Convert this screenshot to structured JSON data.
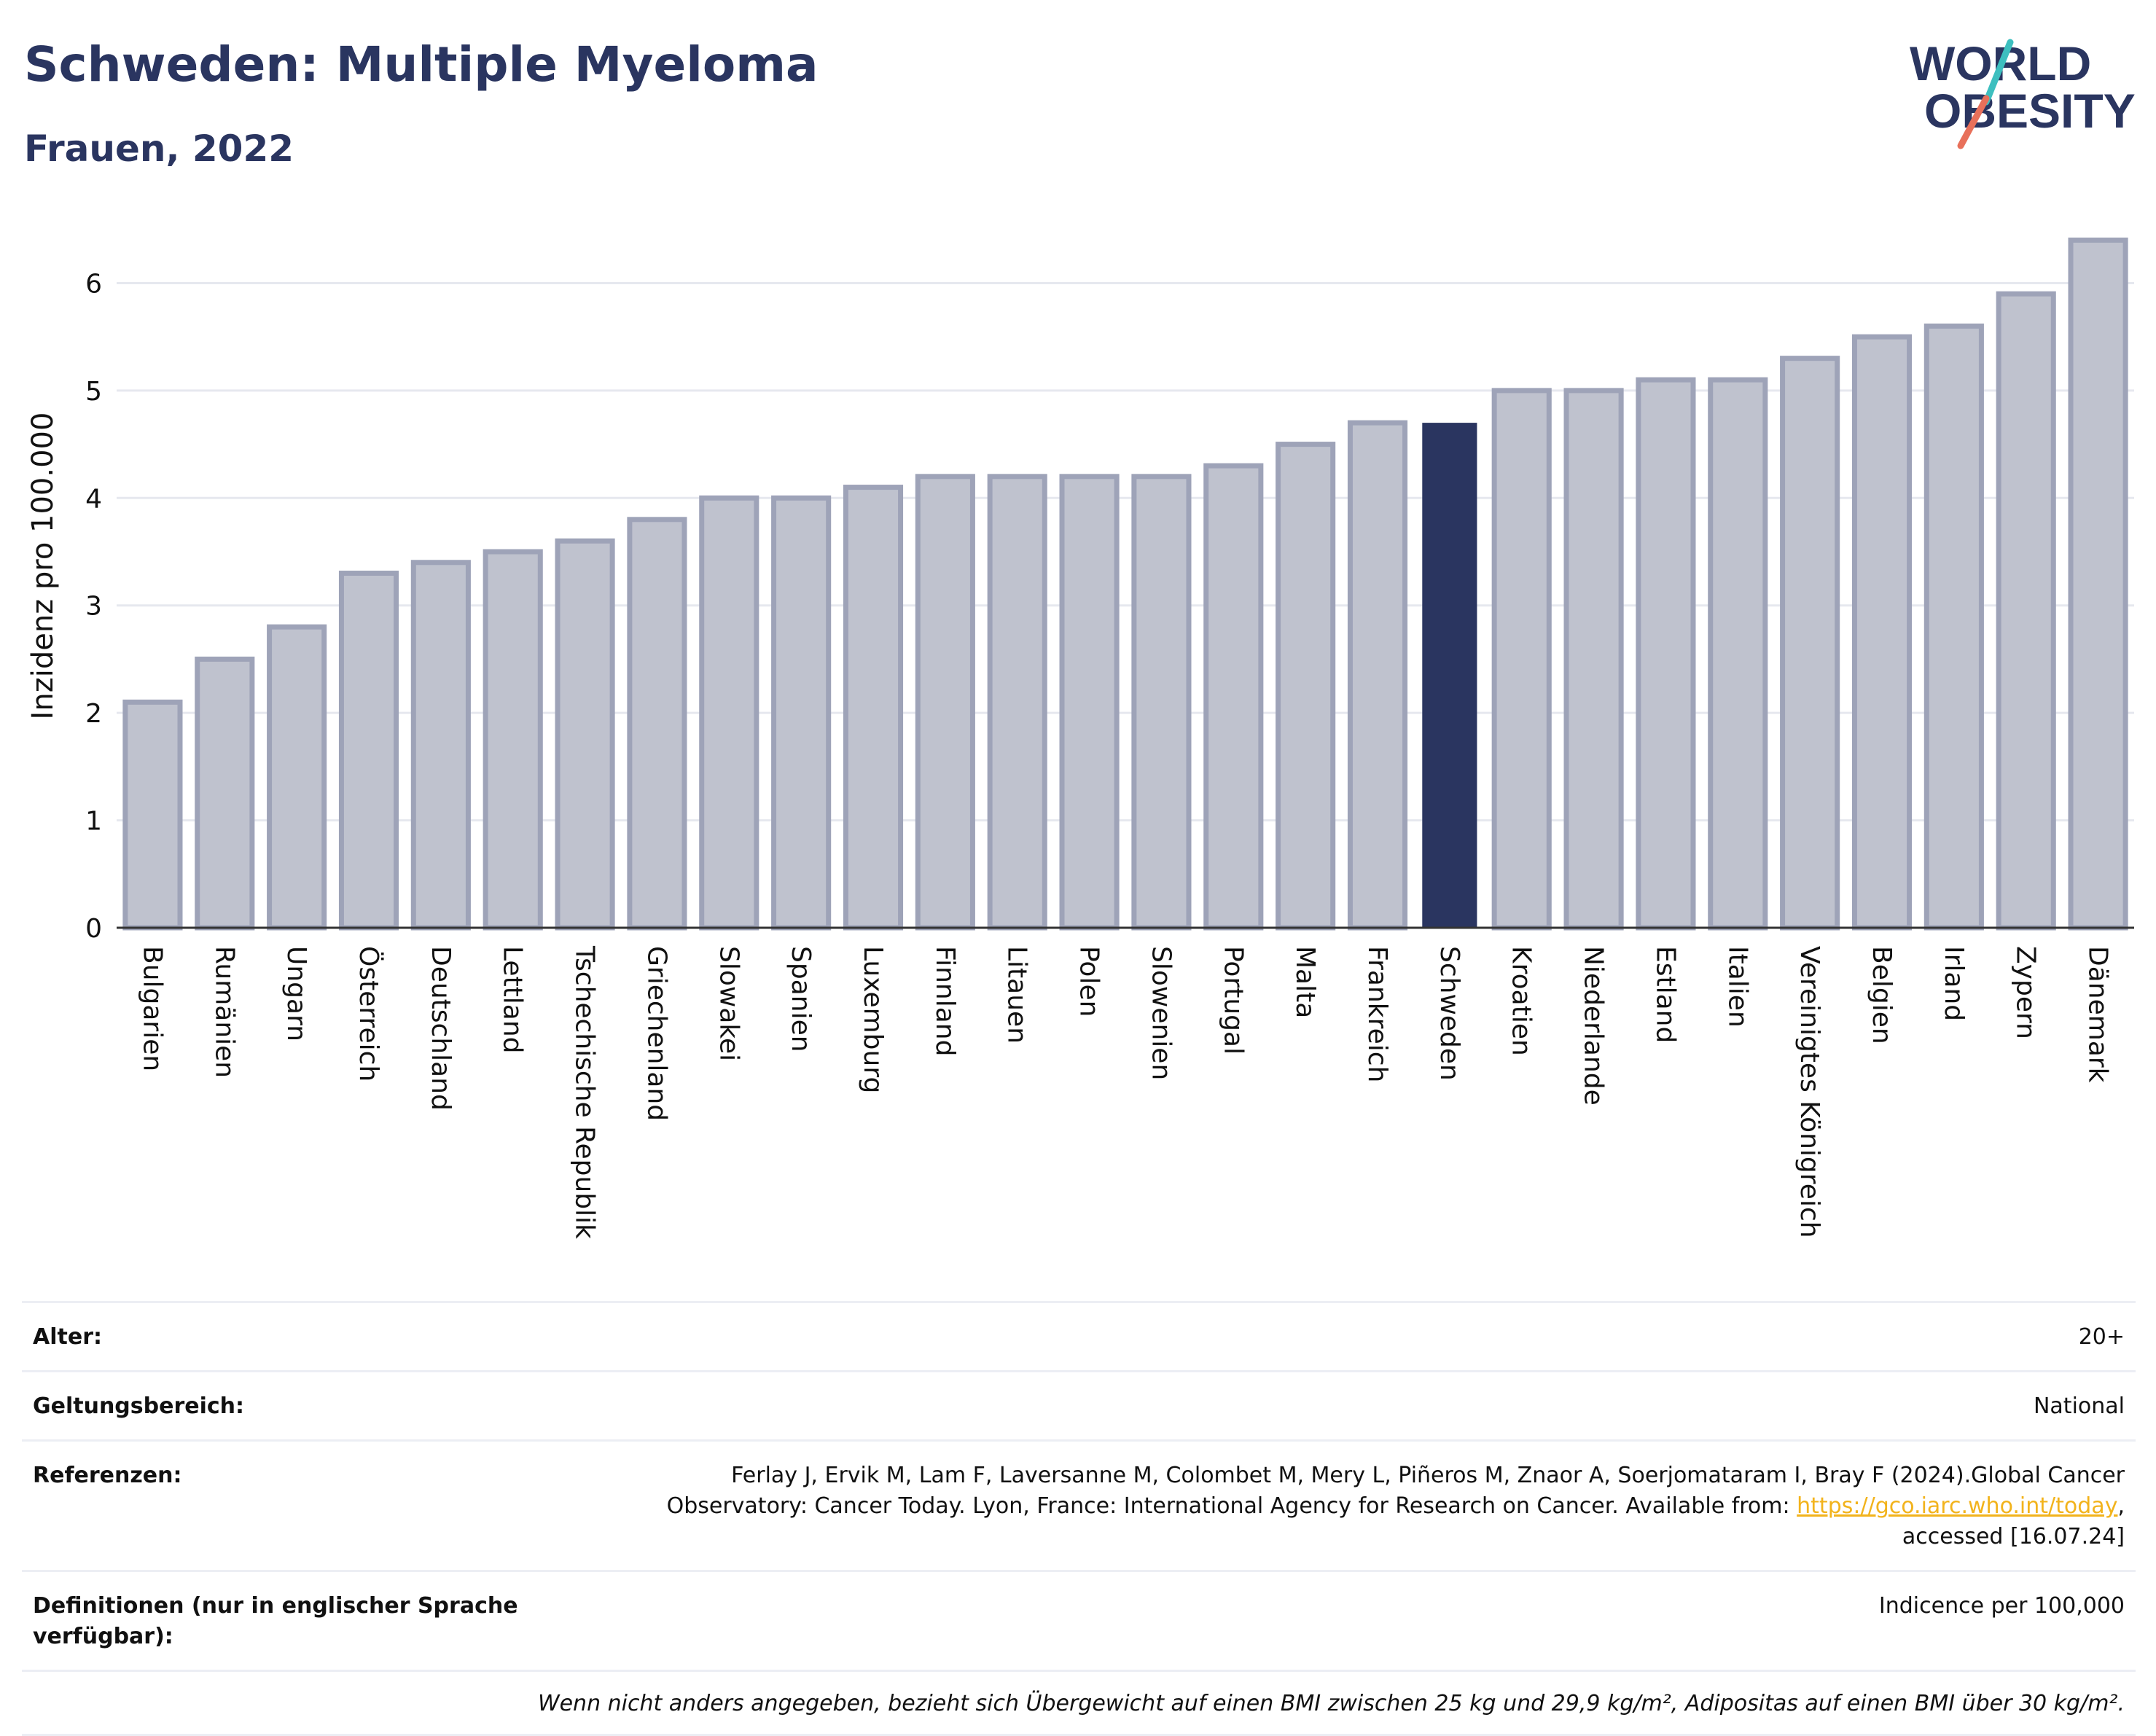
{
  "header": {
    "title": "Schweden: Multiple Myeloma",
    "subtitle": "Frauen, 2022"
  },
  "logo": {
    "line1": "WORLD",
    "line2": "OBESITY",
    "accent_colors": [
      "#3dbfbf",
      "#e8705a"
    ]
  },
  "colors": {
    "highlight_bar": "#2a3560",
    "default_bar": "#bfc2ce",
    "default_bar_border": "#9ea3b8",
    "title": "#2a3560"
  },
  "chart_data": {
    "type": "bar",
    "title": "",
    "xlabel": "",
    "ylabel": "Inzidenz pro 100.000",
    "ylim": [
      0,
      6.6
    ],
    "yticks": [
      0,
      1,
      2,
      3,
      4,
      5,
      6
    ],
    "grid": true,
    "highlight": "Schweden",
    "categories": [
      "Bulgarien",
      "Rumänien",
      "Ungarn",
      "Österreich",
      "Deutschland",
      "Lettland",
      "Tschechische Republik",
      "Griechenland",
      "Slowakei",
      "Spanien",
      "Luxemburg",
      "Finnland",
      "Litauen",
      "Polen",
      "Slowenien",
      "Portugal",
      "Malta",
      "Frankreich",
      "Schweden",
      "Kroatien",
      "Niederlande",
      "Estland",
      "Italien",
      "Vereinigtes Königreich",
      "Belgien",
      "Irland",
      "Zypern",
      "Dänemark"
    ],
    "values": [
      2.1,
      2.5,
      2.8,
      3.3,
      3.4,
      3.5,
      3.6,
      3.8,
      4.0,
      4.0,
      4.1,
      4.2,
      4.2,
      4.2,
      4.2,
      4.3,
      4.5,
      4.7,
      4.7,
      5.0,
      5.0,
      5.1,
      5.1,
      5.3,
      5.5,
      5.6,
      5.9,
      6.4
    ]
  },
  "info": {
    "age_label": "Alter:",
    "age_value": "20+",
    "scope_label": "Geltungsbereich:",
    "scope_value": "National",
    "refs_label": "Referenzen:",
    "refs_text_1": "Ferlay J, Ervik M, Lam F, Laversanne M, Colombet M, Mery L, Piñeros M, Znaor A, Soerjomataram I, Bray F (2024).Global Cancer Observatory: Cancer Today. Lyon, France: International Agency for Research on Cancer. Available from: ",
    "refs_link": "https://gco.iarc.who.int/today",
    "refs_text_2": ", accessed [16.07.24]",
    "defs_label": "Definitionen (nur in englischer Sprache verfügbar):",
    "defs_value": "Indicence per 100,000",
    "footnote": "Wenn nicht anders angegeben, bezieht sich Übergewicht auf einen BMI zwischen 25 kg und 29,9 kg/m², Adipositas auf einen BMI über 30 kg/m²."
  }
}
